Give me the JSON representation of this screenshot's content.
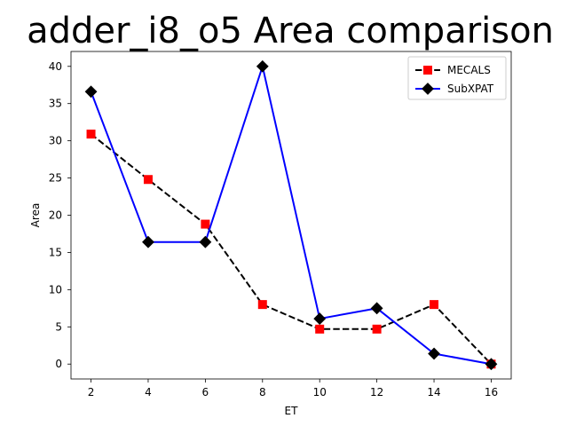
{
  "chart_data": {
    "type": "line",
    "title": "adder_i8_o5 Area comparison",
    "xlabel": "ET",
    "ylabel": "Area",
    "x": [
      2,
      4,
      6,
      8,
      10,
      12,
      14,
      16
    ],
    "xlim": [
      1.3,
      16.7
    ],
    "ylim": [
      -2.0,
      42.0
    ],
    "xticks": [
      2,
      4,
      6,
      8,
      10,
      12,
      14,
      16
    ],
    "yticks": [
      0,
      5,
      10,
      15,
      20,
      25,
      30,
      35,
      40
    ],
    "grid": false,
    "legend_position": "top-right",
    "series": [
      {
        "name": "MECALS",
        "values": [
          30.9,
          24.8,
          18.8,
          8.0,
          4.7,
          4.7,
          8.0,
          0.0
        ],
        "color": "#000000",
        "marker_color": "#ff0000",
        "marker": "square",
        "line_style": "dashed"
      },
      {
        "name": "SubXPAT",
        "values": [
          36.6,
          16.4,
          16.4,
          40.0,
          6.1,
          7.5,
          1.4,
          0.0
        ],
        "color": "#0000ff",
        "marker_color": "#000000",
        "marker": "diamond",
        "line_style": "solid"
      }
    ]
  }
}
